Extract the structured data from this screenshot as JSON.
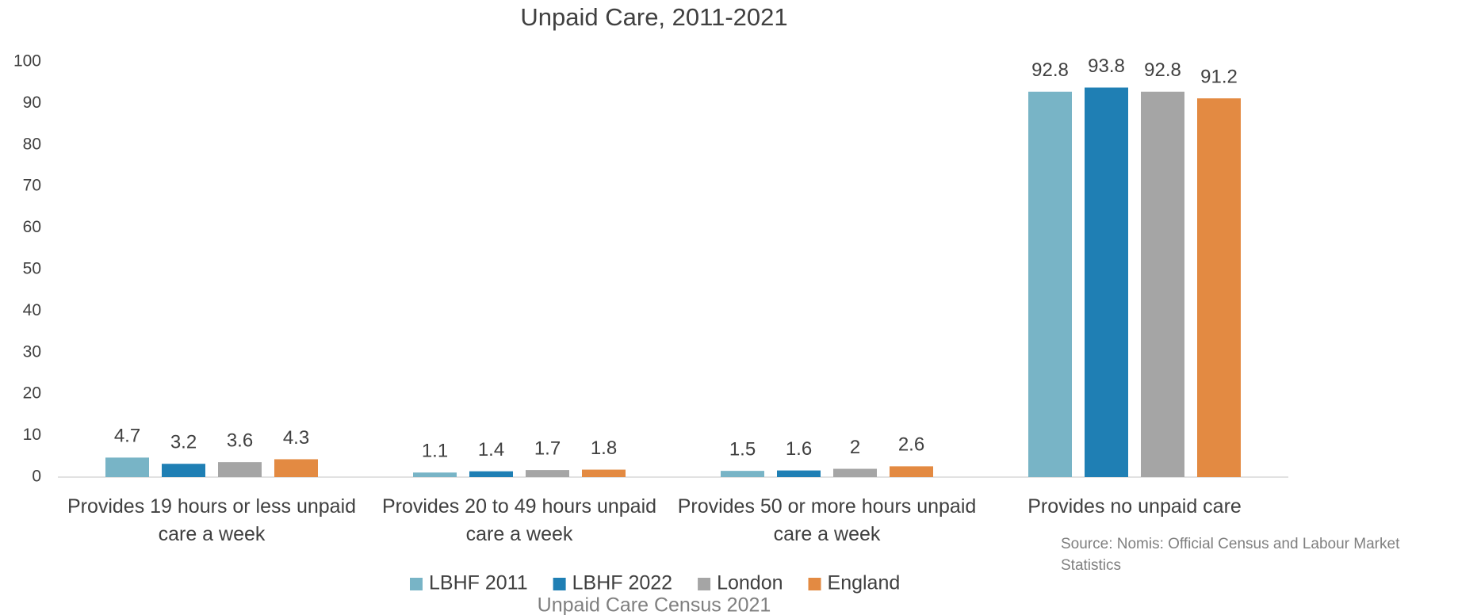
{
  "chart_data": {
    "type": "bar",
    "title": "Unpaid Care, 2011-2021",
    "categories": [
      "Provides 19 hours or less unpaid care a week",
      "Provides 20 to 49 hours unpaid care a week",
      "Provides 50 or more hours unpaid care a week",
      "Provides no unpaid care"
    ],
    "series": [
      {
        "name": "LBHF 2011",
        "color": "#78b4c6",
        "values": [
          4.7,
          1.1,
          1.5,
          92.8
        ]
      },
      {
        "name": "LBHF 2022",
        "color": "#1f7fb4",
        "values": [
          3.2,
          1.4,
          1.6,
          93.8
        ]
      },
      {
        "name": "London",
        "color": "#a5a5a5",
        "values": [
          3.6,
          1.7,
          2,
          92.8
        ]
      },
      {
        "name": "England",
        "color": "#e38a42",
        "values": [
          4.3,
          1.8,
          2.6,
          91.2
        ]
      }
    ],
    "ylim": [
      0,
      100
    ],
    "yticks": [
      0,
      10,
      20,
      30,
      40,
      50,
      60,
      70,
      80,
      90,
      100
    ],
    "grid": false,
    "legend": "bottom",
    "caption": "Unpaid Care Census 2021",
    "source": "Source: Nomis: Official Census and Labour Market Statistics"
  }
}
